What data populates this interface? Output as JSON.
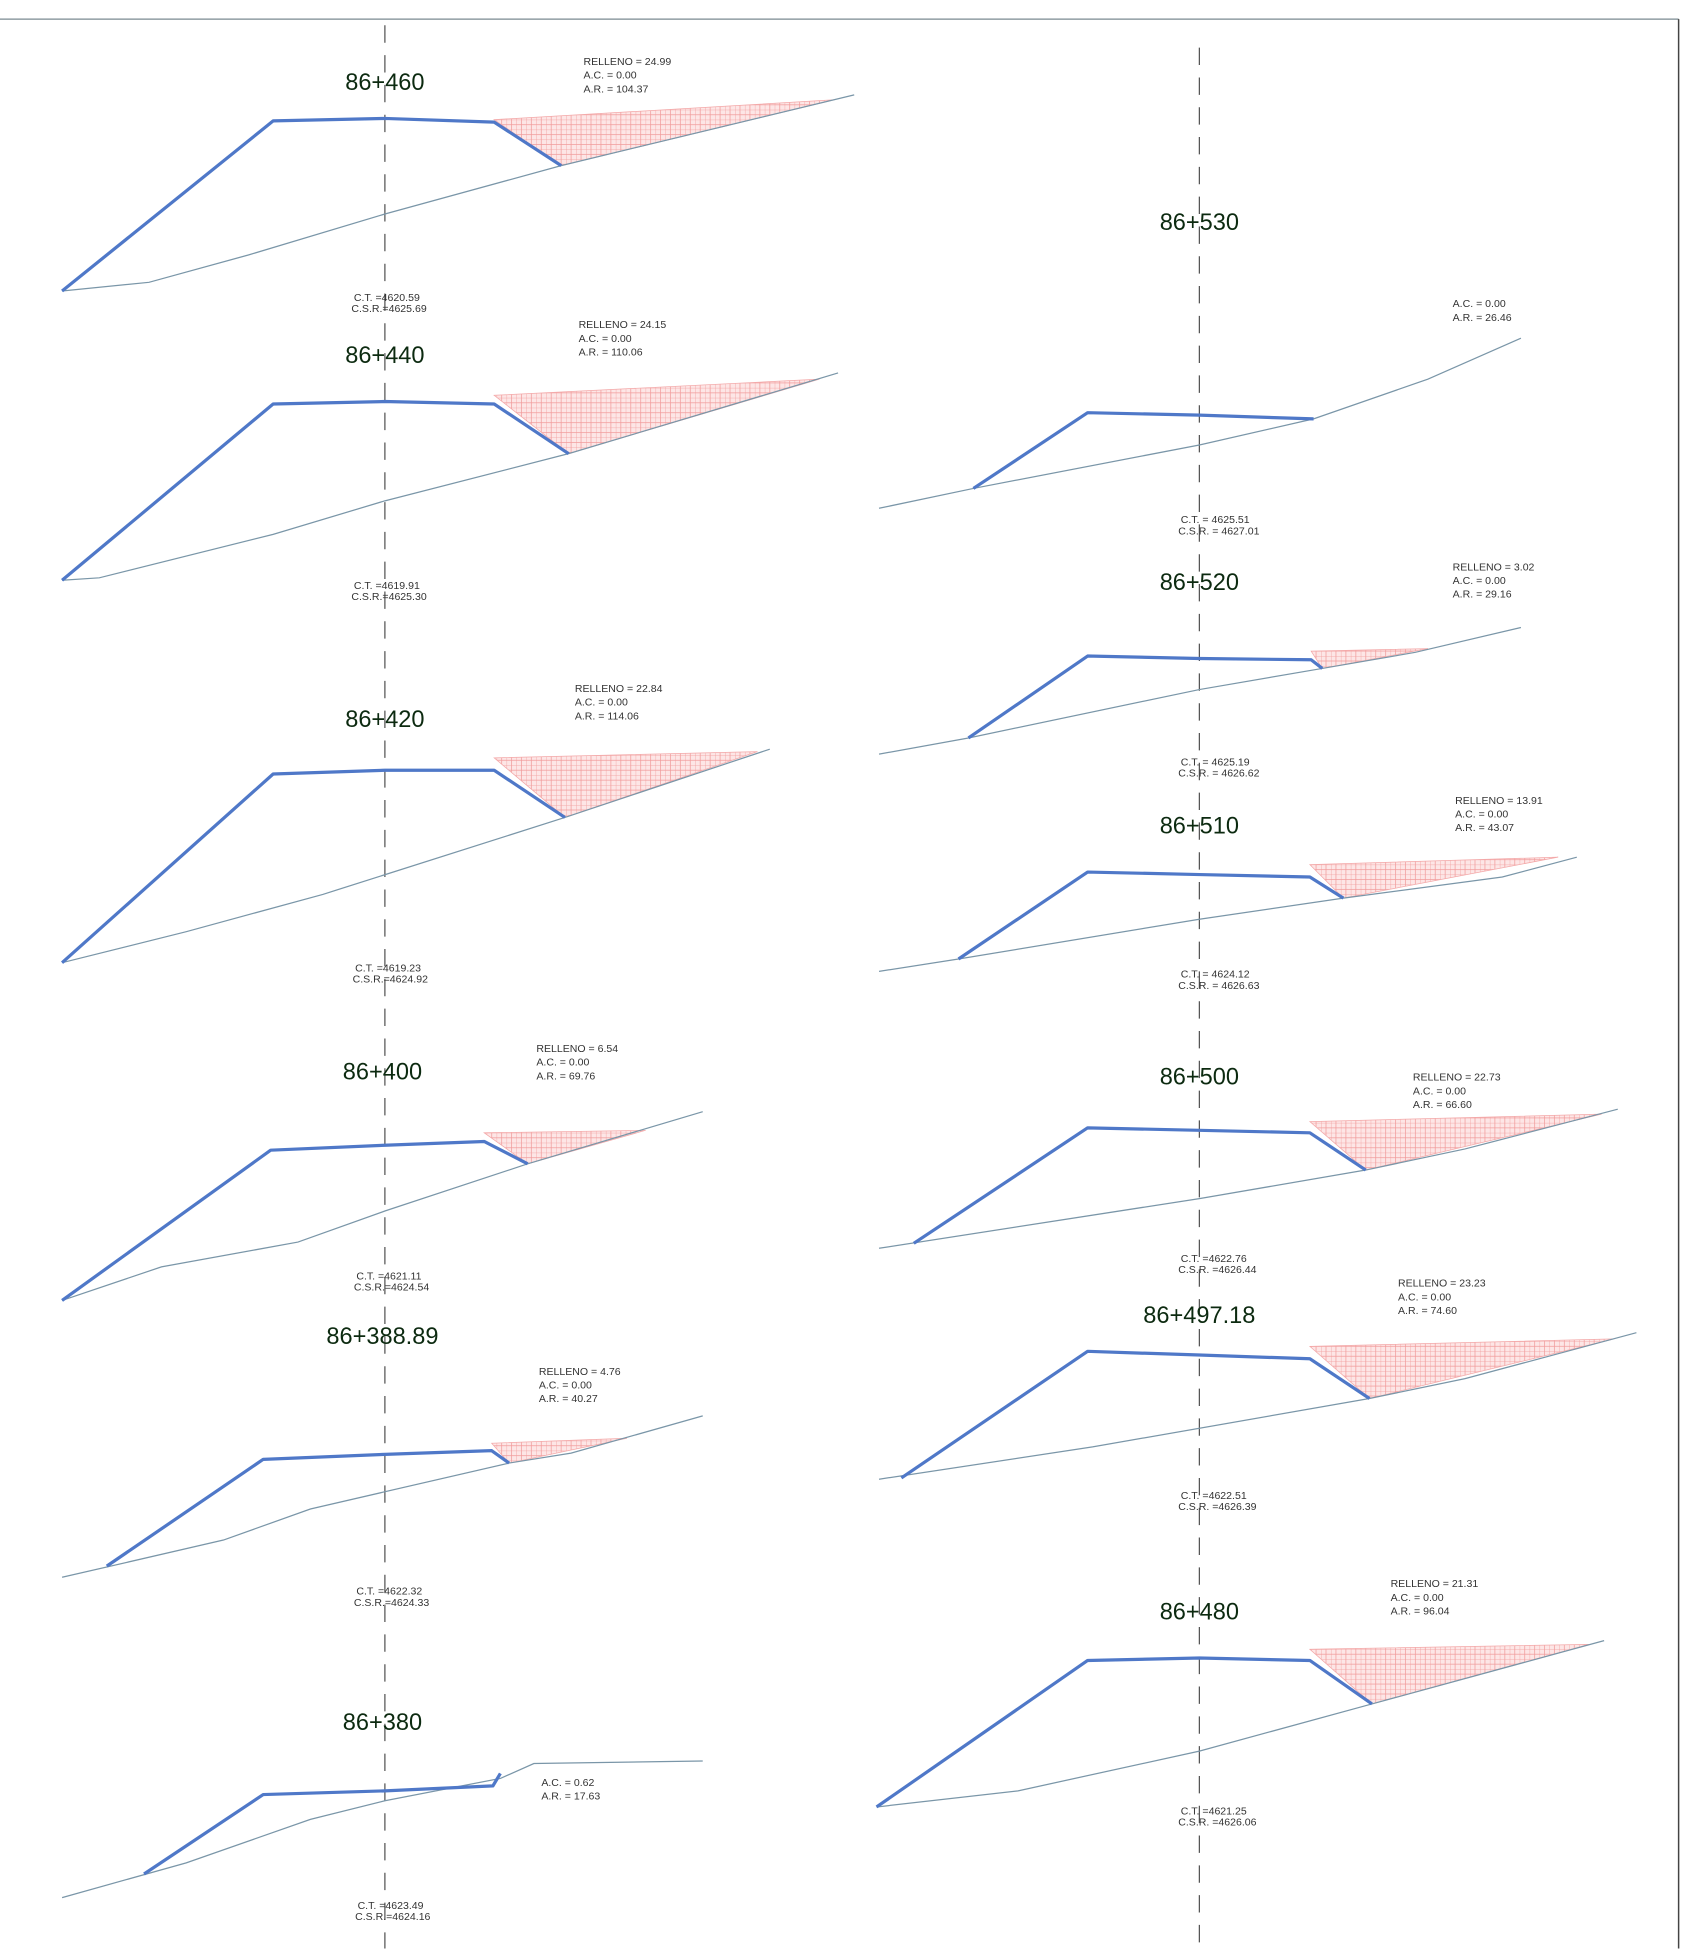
{
  "sections": [
    {
      "station": "86+460",
      "labels": [
        "RELLENO = 24.99",
        "A.C. = 0.00",
        "A.R. = 104.37"
      ],
      "ct": "C.T. =4620.59",
      "csr": "C.S.R.=4625.69"
    },
    {
      "station": "86+440",
      "labels": [
        "RELLENO = 24.15",
        "A.C. = 0.00",
        "A.R. = 110.06"
      ],
      "ct": "C.T. =4619.91",
      "csr": "C.S.R.=4625.30"
    },
    {
      "station": "86+420",
      "labels": [
        "RELLENO = 22.84",
        "A.C. = 0.00",
        "A.R. = 114.06"
      ],
      "ct": "C.T. =4619.23",
      "csr": "C.S.R.=4624.92"
    },
    {
      "station": "86+400",
      "labels": [
        "RELLENO = 6.54",
        "A.C. = 0.00",
        "A.R. = 69.76"
      ],
      "ct": "C.T. =4621.11",
      "csr": "C.S.R.=4624.54"
    },
    {
      "station": "86+388.89",
      "labels": [
        "RELLENO = 4.76",
        "A.C. = 0.00",
        "A.R. = 40.27"
      ],
      "ct": "C.T. =4622.32",
      "csr": "C.S.R.=4624.33"
    },
    {
      "station": "86+380",
      "labels": [
        "A.C. = 0.62",
        "A.R. = 17.63"
      ],
      "ct": "C.T. =4623.49",
      "csr": "C.S.R.=4624.16"
    },
    {
      "station": "86+530",
      "labels": [
        "A.C. = 0.00",
        "A.R. = 26.46"
      ],
      "ct": "C.T. = 4625.51",
      "csr": "C.S.R. = 4627.01"
    },
    {
      "station": "86+520",
      "labels": [
        "RELLENO = 3.02",
        "A.C. = 0.00",
        "A.R. = 29.16"
      ],
      "ct": "C.T. = 4625.19",
      "csr": "C.S.R. = 4626.62"
    },
    {
      "station": "86+510",
      "labels": [
        "RELLENO = 13.91",
        "A.C. = 0.00",
        "A.R. = 43.07"
      ],
      "ct": "C.T. = 4624.12",
      "csr": "C.S.R. = 4626.63"
    },
    {
      "station": "86+500",
      "labels": [
        "RELLENO = 22.73",
        "A.C. = 0.00",
        "A.R. = 66.60"
      ],
      "ct": "C.T. =4622.76",
      "csr": "C.S.R. =4626.44"
    },
    {
      "station": "86+497.18",
      "labels": [
        "RELLENO = 23.23",
        "A.C. = 0.00",
        "A.R. = 74.60"
      ],
      "ct": "C.T. =4622.51",
      "csr": "C.S.R. =4626.39"
    },
    {
      "station": "86+480",
      "labels": [
        "RELLENO = 21.31",
        "A.C. = 0.00",
        "A.R. = 96.04"
      ],
      "ct": "C.T. =4621.25",
      "csr": "C.S.R. =4626.06"
    }
  ]
}
